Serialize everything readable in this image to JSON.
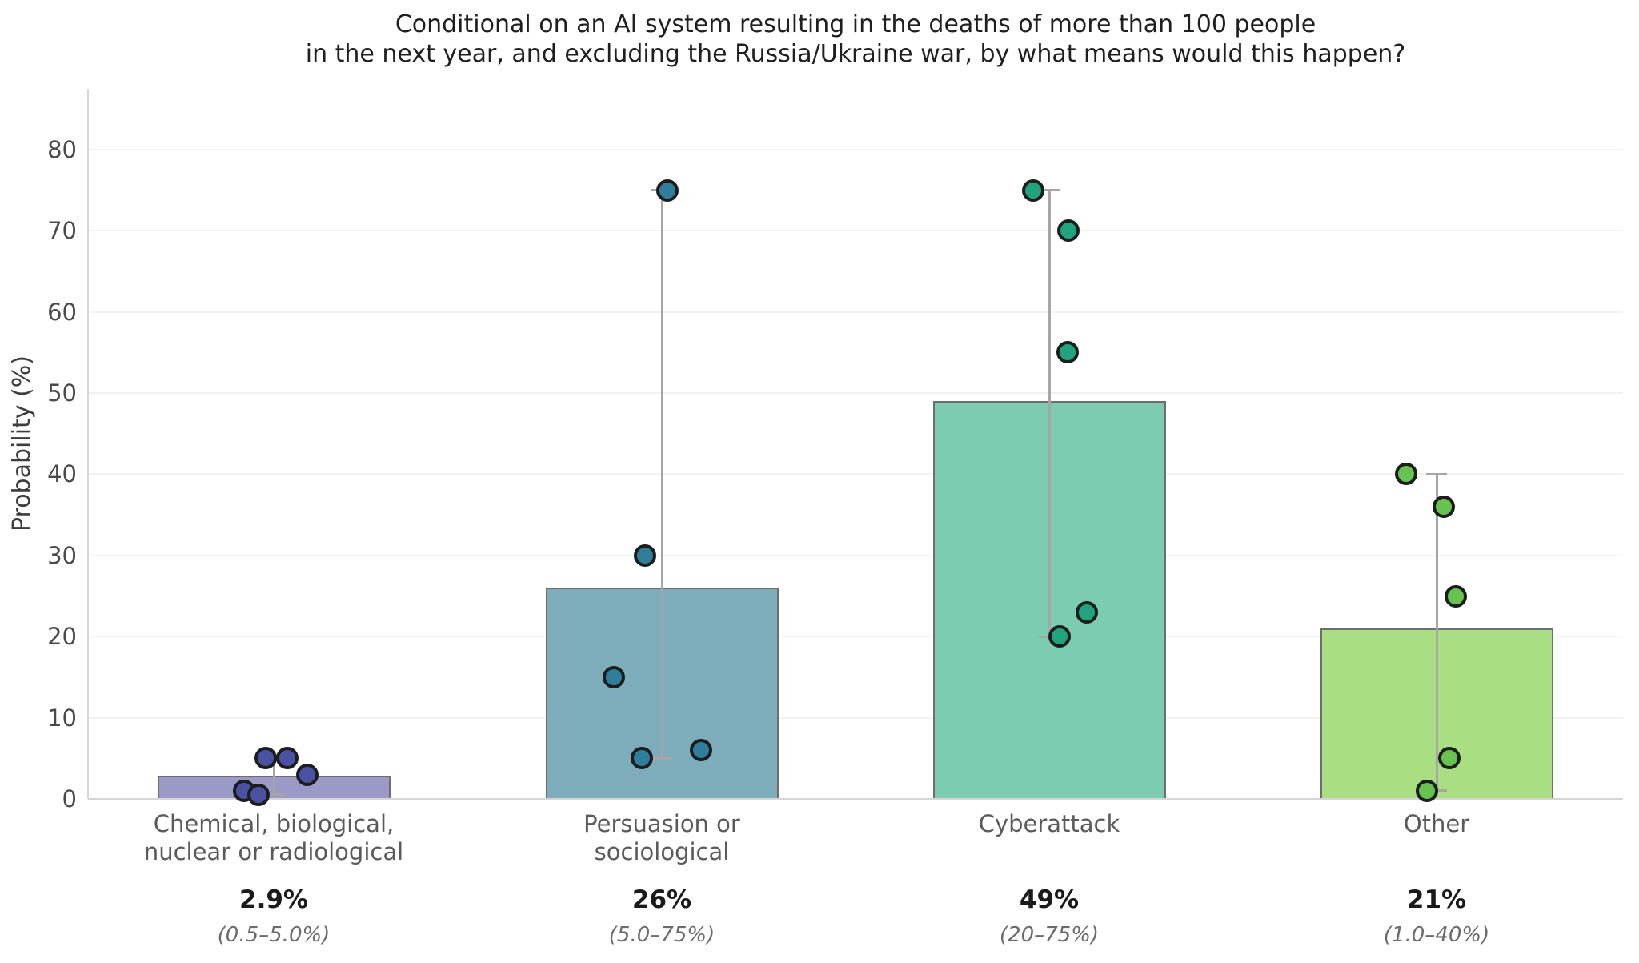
{
  "header": {
    "title_line1": "Conditional on an AI system resulting in the deaths of more than 100 people",
    "title_line2": "in the next year, and excluding the Russia/Ukraine war, by what means would this happen?"
  },
  "colors": {
    "background": "#ffffff",
    "title_text": "#1f1f1f",
    "axis_text": "#4a4a4a",
    "category_text": "#5a5a5a",
    "mean_text": "#1a1a1a",
    "range_text": "#6b6b6b",
    "gridline": "#f2f2f2",
    "axis_line": "#d6d6d6",
    "error_bar": "#a6a6a6",
    "bar_border": "#6e6e6e",
    "point_border": "#1d1d1d"
  },
  "chart_data": {
    "type": "bar",
    "title": "Conditional on an AI system resulting in the deaths of more than 100 people\nin the next year, and excluding the Russia/Ukraine war, by what means would this happen?",
    "xlabel": "",
    "ylabel": "Probability (%)",
    "ylim": [
      0,
      87.5
    ],
    "yticks": [
      0,
      10,
      20,
      30,
      40,
      50,
      60,
      70,
      80
    ],
    "grid": true,
    "legend": false,
    "categories": [
      "Chemical, biological,\nnuclear or radiological",
      "Persuasion or\nsociological",
      "Cyberattack",
      "Other"
    ],
    "values": [
      2.9,
      26,
      49,
      21
    ],
    "groups": [
      {
        "slug": "chemical-biological-nuclear-or-radiological",
        "label": "Chemical, biological,\nnuclear or radiological",
        "bar_value": 2.9,
        "mean_label": "2.9%",
        "range_label": "(0.5–5.0%)",
        "error_range": [
          0.5,
          5.0
        ],
        "points": [
          {
            "v": 5,
            "dx": -10
          },
          {
            "v": 5,
            "dx": 17
          },
          {
            "v": 3,
            "dx": 42
          },
          {
            "v": 1,
            "dx": -37
          },
          {
            "v": 0.5,
            "dx": -19
          }
        ],
        "bar_color": "#9b99c8",
        "point_color": "#4a52a3"
      },
      {
        "slug": "persuasion-or-sociological",
        "label": "Persuasion or\nsociological",
        "bar_value": 26,
        "mean_label": "26%",
        "range_label": "(5.0–75%)",
        "error_range": [
          5.0,
          75
        ],
        "points": [
          {
            "v": 75,
            "dx": 7
          },
          {
            "v": 30,
            "dx": -21
          },
          {
            "v": 15,
            "dx": -60
          },
          {
            "v": 5,
            "dx": -25
          },
          {
            "v": 6,
            "dx": 49
          }
        ],
        "bar_color": "#7dacbb",
        "point_color": "#2f7f9c"
      },
      {
        "slug": "cyberattack",
        "label": "Cyberattack",
        "bar_value": 49,
        "mean_label": "49%",
        "range_label": "(20–75%)",
        "error_range": [
          20,
          75
        ],
        "points": [
          {
            "v": 75,
            "dx": -20
          },
          {
            "v": 70,
            "dx": 24
          },
          {
            "v": 55,
            "dx": 23
          },
          {
            "v": 23,
            "dx": 47
          },
          {
            "v": 20,
            "dx": 13
          }
        ],
        "bar_color": "#7bccb0",
        "point_color": "#22a37f"
      },
      {
        "slug": "other",
        "label": "Other",
        "bar_value": 21,
        "mean_label": "21%",
        "range_label": "(1.0–40%)",
        "error_range": [
          1.0,
          40
        ],
        "points": [
          {
            "v": 40,
            "dx": -38
          },
          {
            "v": 36,
            "dx": 9
          },
          {
            "v": 25,
            "dx": 24
          },
          {
            "v": 5,
            "dx": 16
          },
          {
            "v": 1,
            "dx": -12
          }
        ],
        "bar_color": "#a9de82",
        "point_color": "#68c24f"
      }
    ]
  }
}
